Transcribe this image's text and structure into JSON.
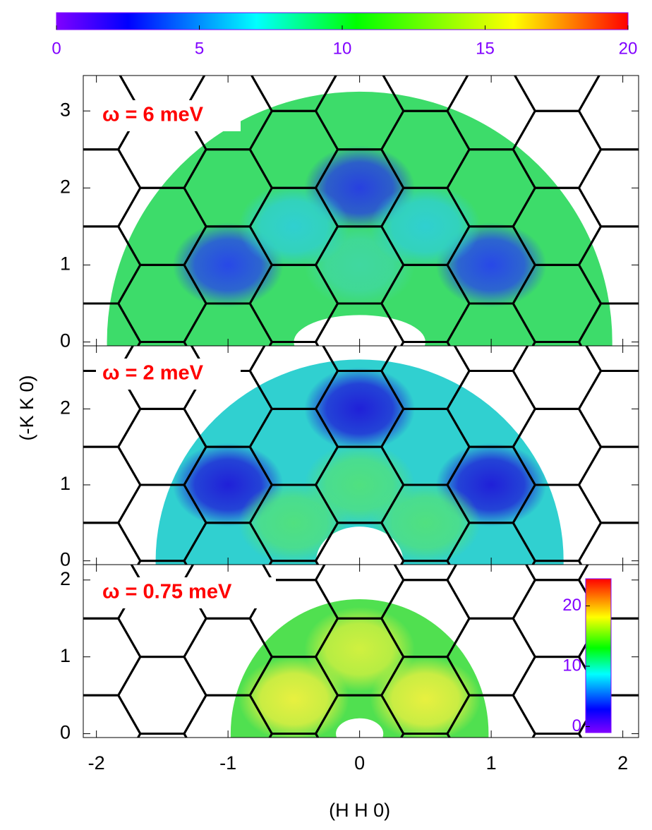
{
  "chart_data": [
    {
      "type": "colorbar",
      "orientation": "horizontal",
      "xlim": [
        0,
        20
      ],
      "xticks": [
        0,
        5,
        10,
        15,
        20
      ],
      "colors": [
        "#8000ff",
        "#0000ff",
        "#00ffff",
        "#00ff00",
        "#ffff00",
        "#ff0000"
      ],
      "color_stops": [
        0,
        2.5,
        7,
        10.5,
        16,
        20
      ]
    },
    {
      "type": "heatmap",
      "annotation": "ω = 6 meV",
      "xlim": [
        -2.1,
        2.12
      ],
      "ylim": [
        -0.05,
        3.46
      ],
      "yticks": [
        0,
        1,
        2,
        3
      ]
    },
    {
      "type": "heatmap",
      "annotation": "ω = 2 meV",
      "xlim": [
        -2.1,
        2.12
      ],
      "ylim": [
        -0.05,
        2.83
      ],
      "yticks": [
        0,
        1,
        2
      ],
      "ylabel": "(-K K 0)"
    },
    {
      "type": "heatmap",
      "annotation": "ω = 0.75 meV",
      "xlim": [
        -2.1,
        2.12
      ],
      "ylim": [
        -0.05,
        2.2
      ],
      "yticks": [
        0,
        1,
        2
      ],
      "xticks": [
        -2,
        -1,
        0,
        1,
        2
      ],
      "xlabel": "(H H 0)",
      "colorbar": {
        "ylim": [
          -1,
          24.5
        ],
        "yticks": [
          0,
          10,
          20
        ]
      }
    }
  ]
}
